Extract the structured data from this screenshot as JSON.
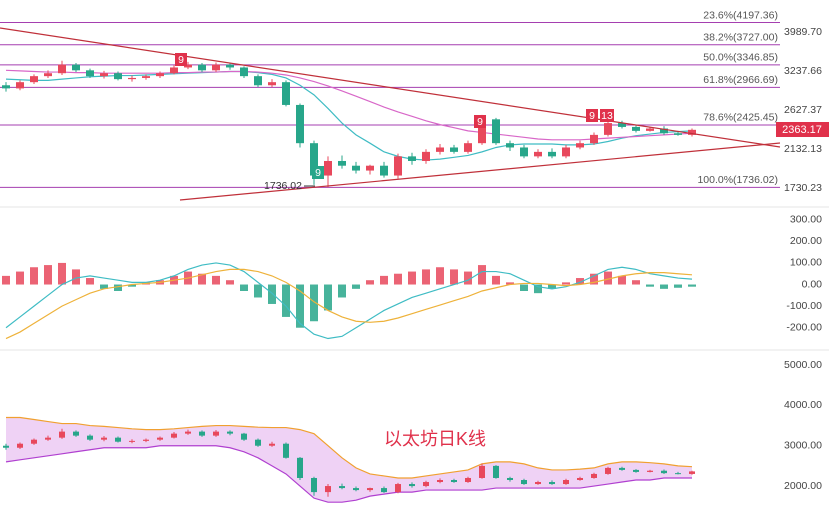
{
  "chart_data": [
    {
      "type": "candlestick",
      "log_scale": true,
      "ylim": [
        1580,
        4736
      ],
      "yticks": [
        {
          "value": 3989.7,
          "label": "3989.70"
        },
        3237.66,
        2627.37,
        2132.13,
        1730.23
      ],
      "up_color": "#e8485c",
      "down_color": "#27a68a",
      "open": [
        3000,
        2950,
        3050,
        3150,
        3200,
        3350,
        3250,
        3150,
        3200,
        3100,
        3120,
        3150,
        3200,
        3300,
        3350,
        3250,
        3350,
        3300,
        3150,
        3000,
        3050,
        2700,
        2200,
        1850,
        2000,
        1950,
        1900,
        1950,
        1850,
        2050,
        2000,
        2100,
        2150,
        2100,
        2200,
        2500,
        2200,
        2150,
        2050,
        2100,
        2050,
        2150,
        2200,
        2300,
        2450,
        2400,
        2350,
        2380,
        2320,
        2300
      ],
      "high": [
        3050,
        3080,
        3180,
        3250,
        3420,
        3380,
        3280,
        3240,
        3230,
        3160,
        3180,
        3230,
        3340,
        3400,
        3380,
        3390,
        3380,
        3320,
        3180,
        3100,
        3080,
        2720,
        2230,
        2050,
        2060,
        1990,
        1960,
        1990,
        2080,
        2090,
        2130,
        2190,
        2180,
        2230,
        2560,
        2520,
        2230,
        2180,
        2130,
        2140,
        2180,
        2230,
        2330,
        2480,
        2480,
        2420,
        2400,
        2410,
        2350,
        2380
      ],
      "low": [
        2900,
        2920,
        3020,
        3120,
        3170,
        3220,
        3120,
        3110,
        3080,
        3060,
        3090,
        3120,
        3180,
        3270,
        3220,
        3220,
        3260,
        3120,
        2970,
        2970,
        2680,
        2150,
        1760,
        1736.02,
        1920,
        1870,
        1860,
        1830,
        1820,
        1960,
        1970,
        2070,
        2080,
        2080,
        2180,
        2180,
        2110,
        2030,
        2030,
        2030,
        2030,
        2130,
        2180,
        2280,
        2380,
        2330,
        2340,
        2300,
        2290,
        2280
      ],
      "close": [
        2950,
        3050,
        3150,
        3200,
        3350,
        3250,
        3150,
        3200,
        3100,
        3120,
        3150,
        3200,
        3300,
        3350,
        3250,
        3350,
        3300,
        3150,
        3000,
        3050,
        2700,
        2200,
        1850,
        2000,
        1950,
        1900,
        1950,
        1850,
        2050,
        2000,
        2100,
        2150,
        2100,
        2200,
        2500,
        2200,
        2150,
        2050,
        2100,
        2050,
        2150,
        2200,
        2300,
        2450,
        2400,
        2350,
        2380,
        2320,
        2300,
        2363.17
      ],
      "ma": [
        {
          "color": "#3fbcc4",
          "values": [
            3100,
            3090,
            3080,
            3080,
            3100,
            3120,
            3140,
            3150,
            3160,
            3160,
            3170,
            3180,
            3190,
            3200,
            3210,
            3220,
            3230,
            3230,
            3210,
            3180,
            3120,
            3000,
            2850,
            2650,
            2450,
            2300,
            2200,
            2100,
            2050,
            2020,
            2010,
            2020,
            2040,
            2060,
            2100,
            2150,
            2180,
            2190,
            2190,
            2190,
            2180,
            2180,
            2190,
            2220,
            2260,
            2290,
            2310,
            2330,
            2340,
            2350
          ]
        },
        {
          "color": "#d867c8",
          "values": [
            3250,
            3240,
            3230,
            3220,
            3220,
            3210,
            3210,
            3200,
            3200,
            3200,
            3200,
            3200,
            3210,
            3210,
            3220,
            3220,
            3230,
            3230,
            3220,
            3200,
            3170,
            3120,
            3060,
            2990,
            2910,
            2830,
            2750,
            2670,
            2600,
            2540,
            2480,
            2430,
            2390,
            2350,
            2330,
            2310,
            2290,
            2270,
            2250,
            2240,
            2240,
            2240,
            2250,
            2260,
            2270,
            2280,
            2290,
            2300,
            2310,
            2320
          ]
        }
      ],
      "fib_color": "#a53fb0",
      "fib_levels": [
        {
          "label": "23.6%(4197.36)",
          "value": 4197.36
        },
        {
          "label": "38.2%(3727.00)",
          "value": 3727.0
        },
        {
          "label": "50.0%(3346.85)",
          "value": 3346.85
        },
        {
          "label": "61.8%(2966.69)",
          "value": 2966.69
        },
        {
          "label": "78.6%(2425.45)",
          "value": 2425.45
        },
        {
          "label": "100.0%(1736.02)",
          "value": 1736.02
        }
      ],
      "td_marks": [
        9,
        9,
        9,
        13,
        9
      ]
    },
    {
      "type": "macd",
      "ylim": [
        -280,
        345
      ],
      "yticks": [
        {
          "value": 300,
          "label": "300.00"
        },
        {
          "value": 200,
          "label": "200.00"
        },
        {
          "value": 100,
          "label": "100.00"
        },
        {
          "value": 0,
          "label": "0.00"
        },
        {
          "value": -100,
          "label": "-100.00"
        },
        {
          "value": -200,
          "label": "-200.00"
        }
      ],
      "up_color": "#e8485c",
      "down_color": "#27a68a",
      "histogram": [
        40,
        60,
        80,
        90,
        100,
        70,
        30,
        -20,
        -30,
        -10,
        10,
        20,
        40,
        60,
        50,
        40,
        20,
        -30,
        -60,
        -90,
        -150,
        -200,
        -170,
        -120,
        -60,
        -20,
        20,
        40,
        50,
        60,
        70,
        80,
        70,
        60,
        90,
        40,
        10,
        -30,
        -40,
        -20,
        10,
        30,
        50,
        60,
        40,
        20,
        -10,
        -20,
        -15,
        -10
      ],
      "dif": {
        "color": "#3fbcc4",
        "values": [
          -200,
          -150,
          -100,
          -50,
          0,
          30,
          40,
          30,
          20,
          10,
          10,
          20,
          40,
          70,
          90,
          100,
          90,
          60,
          10,
          -40,
          -100,
          -180,
          -230,
          -250,
          -240,
          -200,
          -160,
          -120,
          -90,
          -60,
          -40,
          -20,
          0,
          20,
          60,
          60,
          50,
          20,
          -10,
          -20,
          -10,
          10,
          40,
          70,
          80,
          70,
          50,
          40,
          30,
          25
        ]
      },
      "dea": {
        "color": "#eeb23a",
        "values": [
          -250,
          -220,
          -180,
          -140,
          -100,
          -70,
          -40,
          -20,
          -10,
          0,
          5,
          10,
          20,
          30,
          45,
          60,
          70,
          70,
          60,
          40,
          10,
          -30,
          -80,
          -120,
          -150,
          -170,
          -175,
          -170,
          -155,
          -135,
          -115,
          -95,
          -75,
          -55,
          -30,
          -15,
          0,
          5,
          5,
          0,
          -5,
          0,
          10,
          25,
          40,
          50,
          55,
          55,
          50,
          45
        ]
      }
    },
    {
      "type": "bollinger",
      "title": "以太坊日K线",
      "ylim": [
        1530,
        5250
      ],
      "yticks": [
        {
          "value": 5000,
          "label": "5000.00"
        },
        {
          "value": 4000,
          "label": "4000.00"
        },
        {
          "value": 3000,
          "label": "3000.00"
        },
        {
          "value": 2000,
          "label": "2000.00"
        }
      ],
      "fill": "#efd2f5",
      "upper": {
        "color": "#f0a030",
        "values": [
          3700,
          3700,
          3650,
          3600,
          3550,
          3550,
          3500,
          3480,
          3450,
          3420,
          3400,
          3400,
          3420,
          3450,
          3480,
          3500,
          3500,
          3480,
          3460,
          3450,
          3450,
          3400,
          3300,
          3000,
          2700,
          2450,
          2300,
          2250,
          2200,
          2200,
          2250,
          2300,
          2350,
          2400,
          2550,
          2600,
          2600,
          2550,
          2450,
          2400,
          2400,
          2420,
          2450,
          2550,
          2600,
          2600,
          2580,
          2550,
          2500,
          2480
        ]
      },
      "lower": {
        "color": "#b040d0",
        "values": [
          2600,
          2650,
          2700,
          2750,
          2800,
          2850,
          2900,
          2950,
          2950,
          2950,
          2950,
          3000,
          3000,
          3000,
          3000,
          3000,
          2950,
          2850,
          2700,
          2500,
          2300,
          2000,
          1700,
          1600,
          1600,
          1650,
          1750,
          1800,
          1850,
          1850,
          1900,
          1900,
          1900,
          1900,
          1900,
          1950,
          1950,
          1950,
          1950,
          1950,
          1950,
          1950,
          2000,
          2050,
          2100,
          2150,
          2150,
          2200,
          2200,
          2200
        ]
      }
    }
  ]
}
